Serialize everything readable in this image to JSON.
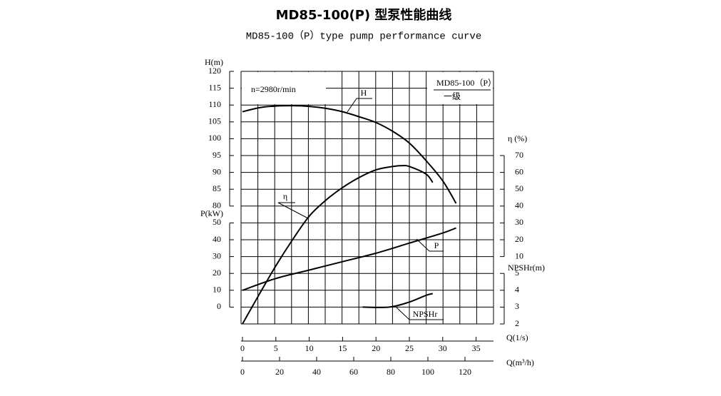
{
  "chart_data": {
    "type": "line",
    "title": "MD85-100(P) 型泵性能曲线",
    "subtitle": "MD85-100（P）type pump performance curve",
    "annotations": {
      "speed": "n=2980r/min",
      "model": "MD85-100（P）",
      "stage": "一级"
    },
    "color": "#000000",
    "grid": true,
    "axes": {
      "h": {
        "label": "H(m)",
        "ylim": [
          80,
          120
        ],
        "yticks": [
          80,
          85,
          90,
          95,
          100,
          105,
          110,
          115,
          120
        ]
      },
      "p": {
        "label": "P(kW)",
        "ylim": [
          0,
          50
        ],
        "yticks": [
          0,
          10,
          20,
          30,
          40,
          50
        ]
      },
      "eta": {
        "label": "η (%)",
        "ylim": [
          10,
          70
        ],
        "yticks": [
          10,
          20,
          30,
          40,
          50,
          60,
          70
        ]
      },
      "npsh": {
        "label": "NPSHr(m)",
        "ylim": [
          2,
          5
        ],
        "yticks": [
          2,
          3,
          4,
          5
        ]
      }
    },
    "xaxis": {
      "label": "Q(1/s)",
      "xlim": [
        0,
        37.5
      ],
      "xticks": [
        0,
        5,
        10,
        15,
        20,
        25,
        30,
        35
      ]
    },
    "x2axis": {
      "label": "Q(m³/h)",
      "xlim": [
        0,
        135
      ],
      "xticks": [
        0,
        20,
        40,
        60,
        80,
        100,
        120
      ]
    },
    "series": [
      {
        "name": "H",
        "axis": "h",
        "x": [
          0,
          2.5,
          5,
          7.5,
          10,
          12.5,
          15,
          17.5,
          20,
          22.5,
          25,
          27.5,
          30,
          32
        ],
        "values": [
          108,
          109.2,
          109.7,
          109.8,
          109.6,
          109,
          108,
          106.5,
          104.8,
          102.2,
          98.7,
          93.5,
          87.5,
          80.8
        ]
      },
      {
        "name": "η",
        "axis": "eta",
        "x": [
          0,
          2.5,
          5,
          7.5,
          10,
          12.5,
          15,
          17.5,
          20,
          22.5,
          24,
          25,
          27.5,
          28.5
        ],
        "values": [
          -30,
          -12.5,
          4.5,
          20,
          34,
          43.5,
          51,
          57,
          61.5,
          63.5,
          64,
          63.5,
          59,
          54
        ]
      },
      {
        "name": "P",
        "axis": "p",
        "x": [
          0,
          5,
          10,
          15,
          20,
          25,
          30,
          32
        ],
        "values": [
          10,
          17,
          22,
          27,
          32,
          38,
          44,
          47
        ]
      },
      {
        "name": "NPSHr",
        "axis": "npsh",
        "x": [
          18,
          22,
          25,
          27.5,
          28.5
        ],
        "values": [
          3,
          3,
          3.3,
          3.7,
          3.8
        ]
      }
    ]
  }
}
